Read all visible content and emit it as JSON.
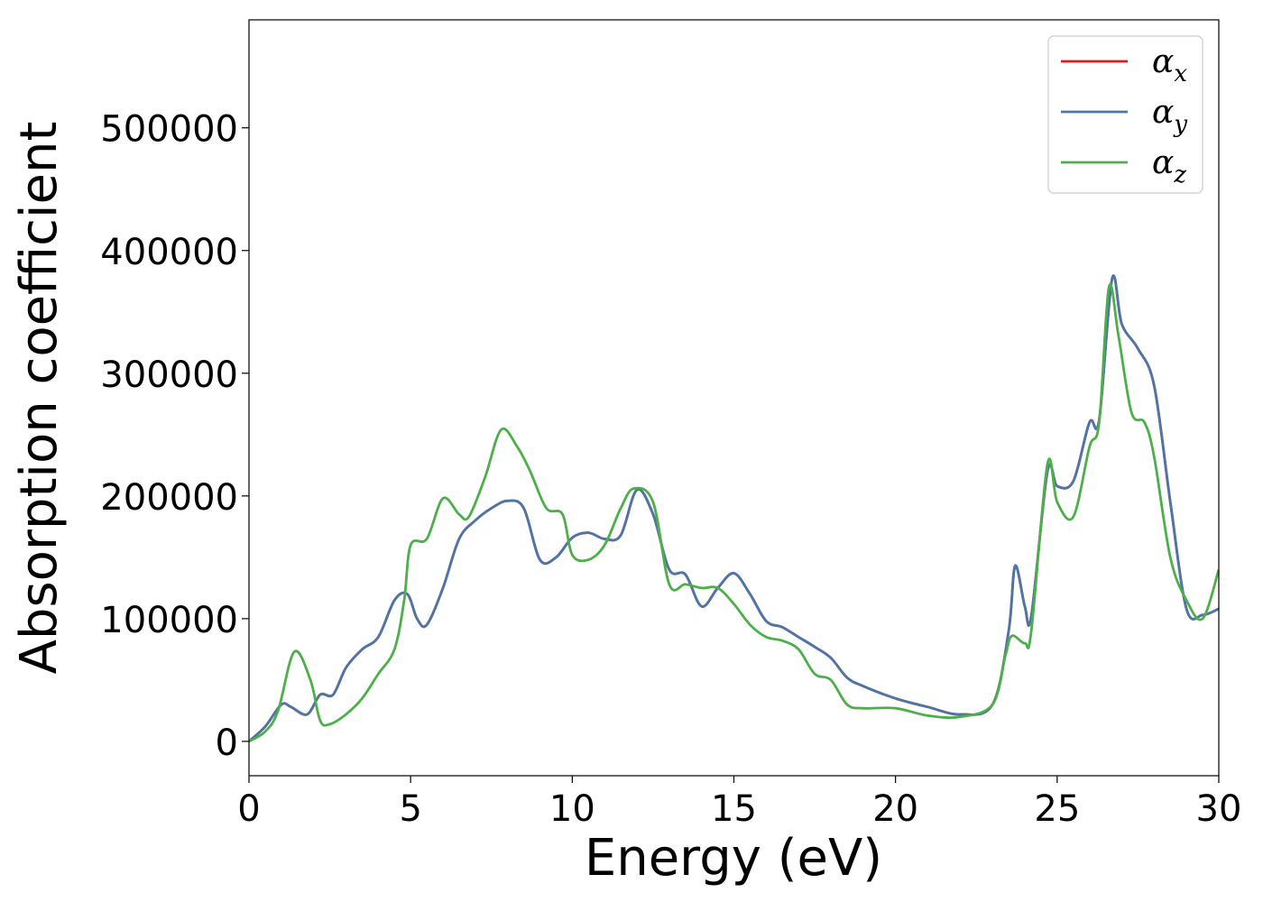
{
  "chart_data": {
    "type": "line",
    "title": "",
    "xlabel": "Energy (eV)",
    "ylabel": "Absorption coefficient",
    "xlim": [
      0,
      30
    ],
    "ylim": [
      -28000,
      588000
    ],
    "xticks": [
      0,
      5,
      10,
      15,
      20,
      25,
      30
    ],
    "yticks": [
      0,
      100000,
      200000,
      300000,
      400000,
      500000
    ],
    "xtick_labels": [
      "0",
      "5",
      "10",
      "15",
      "20",
      "25",
      "30"
    ],
    "ytick_labels": [
      "0",
      "100000",
      "200000",
      "300000",
      "400000",
      "500000"
    ],
    "grid": false,
    "legend_position": "top-right",
    "series": [
      {
        "name": "αx",
        "legend_symbol": "α",
        "legend_subscript": "x",
        "color": "#e41a1c",
        "x": [
          0,
          0.5,
          1.0,
          1.3,
          1.8,
          2.2,
          2.6,
          3.0,
          3.5,
          4.0,
          4.5,
          4.9,
          5.2,
          5.5,
          6.0,
          6.5,
          7.0,
          7.5,
          8.0,
          8.5,
          9.0,
          9.5,
          10.0,
          10.5,
          11.0,
          11.5,
          12.0,
          12.5,
          13.0,
          13.5,
          14.0,
          14.5,
          15.0,
          15.5,
          16.0,
          16.5,
          17.0,
          17.5,
          18.0,
          18.5,
          19.0,
          20.0,
          21.0,
          22.0,
          23.0,
          23.5,
          23.7,
          24.0,
          24.2,
          24.7,
          25.0,
          25.5,
          26.0,
          26.3,
          26.7,
          27.0,
          27.5,
          28.0,
          28.5,
          29.0,
          29.5,
          30.0
        ],
        "values": [
          0,
          12000,
          30000,
          28000,
          22000,
          38000,
          38000,
          60000,
          75000,
          85000,
          115000,
          120000,
          100000,
          95000,
          125000,
          165000,
          180000,
          190000,
          196000,
          190000,
          148000,
          150000,
          166000,
          170000,
          165000,
          168000,
          205000,
          185000,
          140000,
          136000,
          110000,
          125000,
          137000,
          120000,
          98000,
          93000,
          85000,
          77000,
          68000,
          52000,
          45000,
          35000,
          28000,
          22000,
          30000,
          90000,
          143000,
          110000,
          102000,
          220000,
          208000,
          212000,
          260000,
          262000,
          377000,
          340000,
          320000,
          290000,
          195000,
          108000,
          103000,
          108000
        ]
      },
      {
        "name": "αy",
        "legend_symbol": "α",
        "legend_subscript": "y",
        "color": "#4a77a8",
        "x": [
          0,
          0.5,
          1.0,
          1.3,
          1.8,
          2.2,
          2.6,
          3.0,
          3.5,
          4.0,
          4.5,
          4.9,
          5.2,
          5.5,
          6.0,
          6.5,
          7.0,
          7.5,
          8.0,
          8.5,
          9.0,
          9.5,
          10.0,
          10.5,
          11.0,
          11.5,
          12.0,
          12.5,
          13.0,
          13.5,
          14.0,
          14.5,
          15.0,
          15.5,
          16.0,
          16.5,
          17.0,
          17.5,
          18.0,
          18.5,
          19.0,
          20.0,
          21.0,
          22.0,
          23.0,
          23.5,
          23.7,
          24.0,
          24.2,
          24.7,
          25.0,
          25.5,
          26.0,
          26.3,
          26.7,
          27.0,
          27.5,
          28.0,
          28.5,
          29.0,
          29.5,
          30.0
        ],
        "values": [
          0,
          12000,
          30000,
          28000,
          22000,
          38000,
          38000,
          60000,
          75000,
          85000,
          115000,
          120000,
          100000,
          95000,
          125000,
          165000,
          180000,
          190000,
          196000,
          190000,
          148000,
          150000,
          166000,
          170000,
          165000,
          168000,
          205000,
          185000,
          140000,
          136000,
          110000,
          125000,
          137000,
          120000,
          98000,
          93000,
          85000,
          77000,
          68000,
          52000,
          45000,
          35000,
          28000,
          22000,
          30000,
          90000,
          143000,
          110000,
          102000,
          220000,
          208000,
          212000,
          260000,
          262000,
          377000,
          340000,
          320000,
          290000,
          195000,
          108000,
          103000,
          108000
        ]
      },
      {
        "name": "αz",
        "legend_symbol": "α",
        "legend_subscript": "z",
        "color": "#4daf4a",
        "x": [
          0,
          0.5,
          0.9,
          1.4,
          1.9,
          2.2,
          2.5,
          3.0,
          3.5,
          4.0,
          4.5,
          4.8,
          5.0,
          5.5,
          6.0,
          6.5,
          6.8,
          7.3,
          7.8,
          8.3,
          8.7,
          9.2,
          9.7,
          10.0,
          10.5,
          11.0,
          11.5,
          11.9,
          12.5,
          13.0,
          13.5,
          14.0,
          14.5,
          15.0,
          15.5,
          16.0,
          16.5,
          17.0,
          17.5,
          18.0,
          18.5,
          19.0,
          20.0,
          21.0,
          22.0,
          23.0,
          23.4,
          23.6,
          24.0,
          24.2,
          24.7,
          25.0,
          25.5,
          26.0,
          26.3,
          26.6,
          26.9,
          27.3,
          27.7,
          28.0,
          28.5,
          29.0,
          29.5,
          30.0
        ],
        "values": [
          0,
          8000,
          25000,
          73000,
          50000,
          17000,
          14000,
          22000,
          35000,
          55000,
          75000,
          115000,
          160000,
          165000,
          198000,
          185000,
          183000,
          215000,
          254000,
          240000,
          220000,
          190000,
          185000,
          152000,
          148000,
          160000,
          190000,
          206000,
          195000,
          128000,
          128000,
          125000,
          125000,
          112000,
          95000,
          85000,
          82000,
          75000,
          55000,
          50000,
          30000,
          27000,
          27000,
          21000,
          20000,
          30000,
          70000,
          86000,
          80000,
          90000,
          226000,
          195000,
          183000,
          240000,
          260000,
          370000,
          330000,
          268000,
          260000,
          232000,
          150000,
          115000,
          100000,
          140000
        ]
      }
    ]
  }
}
